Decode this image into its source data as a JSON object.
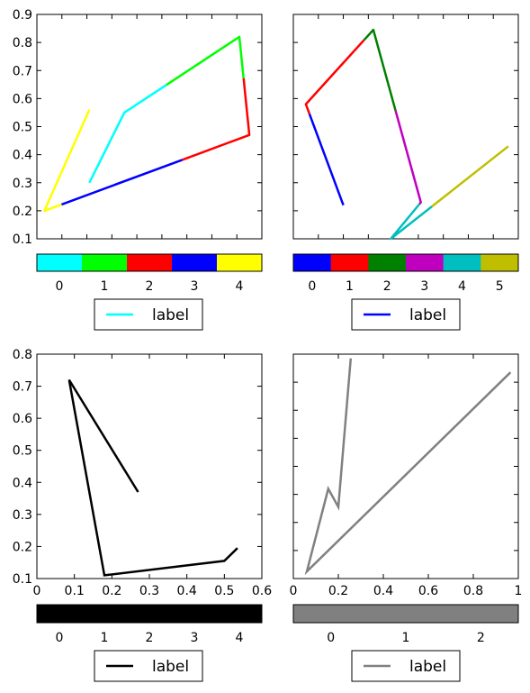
{
  "chart_data": [
    {
      "type": "line",
      "panel": "top-left",
      "x": [
        1.05,
        1.75,
        4.05,
        4.25,
        0.15,
        0.6,
        1.05
      ],
      "y": [
        0.3,
        0.55,
        0.82,
        0.47,
        0.2,
        0.38,
        0.56
      ],
      "segment_colors": [
        "#00ffff",
        "#00ff00",
        "#ff0000",
        "#0000ff",
        "#ffff00"
      ],
      "xlim": [
        0,
        4.5
      ],
      "ylim": [
        0.1,
        0.9
      ],
      "yticks": [
        "0.1",
        "0.2",
        "0.3",
        "0.4",
        "0.5",
        "0.6",
        "0.7",
        "0.8",
        "0.9"
      ],
      "xticks": [],
      "colorbar": {
        "colors": [
          "#00ffff",
          "#00ff00",
          "#ff0000",
          "#0000ff",
          "#ffff00"
        ],
        "ticks": [
          "0",
          "1",
          "2",
          "3",
          "4"
        ]
      },
      "legend": {
        "label": "label",
        "color": "#00ffff",
        "placement": "below"
      }
    },
    {
      "type": "line",
      "panel": "top-right",
      "x": [
        1.0,
        0.25,
        1.6,
        2.55,
        1.95,
        4.3
      ],
      "y": [
        0.22,
        0.58,
        0.845,
        0.23,
        0.1,
        0.43
      ],
      "segment_colors": [
        "#0000ff",
        "#ff0000",
        "#008000",
        "#bf00bf",
        "#00bfbf",
        "#bfbf00"
      ],
      "xlim": [
        0,
        4.5
      ],
      "ylim": [
        0.1,
        0.9
      ],
      "xticks": [],
      "yticks": [],
      "colorbar": {
        "colors": [
          "#0000ff",
          "#ff0000",
          "#008000",
          "#bf00bf",
          "#00bfbf",
          "#bfbf00"
        ],
        "ticks": [
          "0",
          "1",
          "2",
          "3",
          "4",
          "5"
        ]
      },
      "legend": {
        "label": "label",
        "color": "#0000ff",
        "placement": "below"
      }
    },
    {
      "type": "line",
      "panel": "bottom-left",
      "x": [
        0.27,
        0.086,
        0.18,
        0.5,
        0.535
      ],
      "y": [
        0.37,
        0.72,
        0.11,
        0.155,
        0.195
      ],
      "color": "#000000",
      "xlim": [
        0,
        0.6
      ],
      "ylim": [
        0.1,
        0.8
      ],
      "xticks": [
        "0",
        "0.1",
        "0.2",
        "0.3",
        "0.4",
        "0.5",
        "0.6"
      ],
      "yticks": [
        "0.1",
        "0.2",
        "0.3",
        "0.4",
        "0.5",
        "0.6",
        "0.7",
        "0.8"
      ],
      "colorbar": {
        "colors": [
          "#000000"
        ],
        "ticks": [
          "0",
          "1",
          "2",
          "3",
          "4"
        ]
      },
      "legend": {
        "label": "label",
        "color": "#000000",
        "placement": "below"
      }
    },
    {
      "type": "line",
      "panel": "bottom-right",
      "x": [
        0.255,
        0.2,
        0.155,
        0.06,
        0.965
      ],
      "y": [
        0.885,
        0.355,
        0.42,
        0.125,
        0.835
      ],
      "color": "#808080",
      "xlim": [
        0,
        1
      ],
      "ylim": [
        0.1,
        0.9
      ],
      "xticks": [
        "0",
        "0.2",
        "0.4",
        "0.6",
        "0.8",
        "1"
      ],
      "yticks": [],
      "colorbar": {
        "colors": [
          "#808080"
        ],
        "ticks": [
          "0",
          "1",
          "2"
        ]
      },
      "legend": {
        "label": "label",
        "color": "#808080",
        "placement": "below"
      }
    }
  ]
}
